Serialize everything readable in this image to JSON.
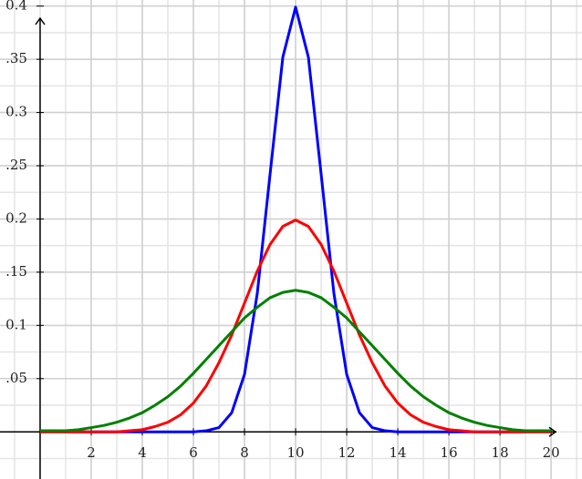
{
  "chart_data": {
    "type": "line",
    "x": [
      0,
      0.5,
      1,
      1.5,
      2,
      2.5,
      3,
      3.5,
      4,
      4.5,
      5,
      5.5,
      6,
      6.5,
      7,
      7.5,
      8,
      8.5,
      9,
      9.5,
      10,
      10.5,
      11,
      11.5,
      12,
      12.5,
      13,
      13.5,
      14,
      14.5,
      15,
      15.5,
      16,
      16.5,
      17,
      17.5,
      18,
      18.5,
      19,
      19.5,
      20
    ],
    "series": [
      {
        "color": "#0000ff",
        "values": [
          0,
          0,
          0,
          0,
          0,
          0,
          0,
          0,
          0,
          0,
          0,
          0,
          0,
          0.001,
          0.004,
          0.018,
          0.054,
          0.13,
          0.242,
          0.352,
          0.399,
          0.352,
          0.242,
          0.13,
          0.054,
          0.018,
          0.004,
          0.001,
          0,
          0,
          0,
          0,
          0,
          0,
          0,
          0,
          0,
          0,
          0,
          0,
          0
        ]
      },
      {
        "color": "#ff0000",
        "values": [
          0,
          0,
          0,
          0,
          0,
          0,
          0,
          0.001,
          0.002,
          0.005,
          0.009,
          0.016,
          0.027,
          0.043,
          0.065,
          0.091,
          0.121,
          0.151,
          0.176,
          0.193,
          0.199,
          0.193,
          0.176,
          0.151,
          0.121,
          0.091,
          0.065,
          0.043,
          0.027,
          0.016,
          0.009,
          0.005,
          0.002,
          0.001,
          0,
          0,
          0,
          0,
          0,
          0,
          0
        ]
      },
      {
        "color": "#008000",
        "values": [
          0.001,
          0.001,
          0.001,
          0.002,
          0.004,
          0.006,
          0.009,
          0.013,
          0.018,
          0.025,
          0.033,
          0.043,
          0.055,
          0.068,
          0.081,
          0.094,
          0.107,
          0.117,
          0.126,
          0.131,
          0.133,
          0.131,
          0.126,
          0.117,
          0.107,
          0.094,
          0.081,
          0.068,
          0.055,
          0.043,
          0.033,
          0.025,
          0.018,
          0.013,
          0.009,
          0.006,
          0.004,
          0.002,
          0.001,
          0.001,
          0.001
        ]
      }
    ],
    "xlim": [
      -1.57,
      21.21
    ],
    "ylim": [
      -0.0443,
      0.4057
    ],
    "xticks": [
      2,
      4,
      6,
      8,
      10,
      12,
      14,
      16,
      18,
      20
    ],
    "yticks": [
      {
        "value": 0.05,
        "label": ".05"
      },
      0.1,
      {
        "value": 0.15,
        "label": ".15"
      },
      0.2,
      {
        "value": 0.25,
        "label": ".25"
      },
      0.3,
      {
        "value": 0.35,
        "label": ".35"
      },
      0.4
    ],
    "grid": true
  }
}
